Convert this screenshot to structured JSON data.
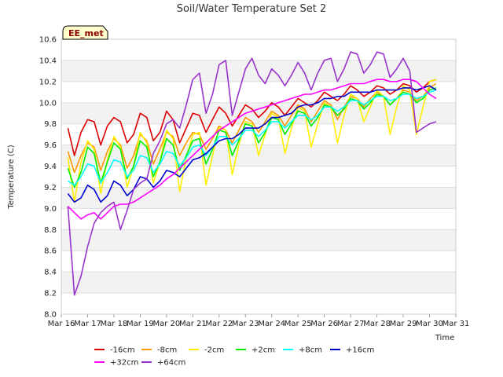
{
  "chart_data": {
    "type": "line",
    "title": "Soil/Water Temperature Set 2",
    "xlabel": "Time",
    "ylabel": "Temperature (C)",
    "badge": "EE_met",
    "x_ticks": [
      "Mar 16",
      "Mar 17",
      "Mar 18",
      "Mar 19",
      "Mar 20",
      "Mar 21",
      "Mar 22",
      "Mar 23",
      "Mar 24",
      "Mar 25",
      "Mar 26",
      "Mar 27",
      "Mar 28",
      "Mar 29",
      "Mar 30",
      "Mar 31"
    ],
    "xlim": [
      0,
      15
    ],
    "ylim": [
      8.0,
      10.6
    ],
    "y_ticks": [
      "8.0",
      "8.2",
      "8.4",
      "8.6",
      "8.8",
      "9.0",
      "9.2",
      "9.4",
      "9.6",
      "9.8",
      "10.0",
      "10.2",
      "10.4",
      "10.6"
    ],
    "grid": "horizontal bands",
    "legend_position": "bottom",
    "x_days": [
      0.25,
      0.5,
      0.75,
      1.0,
      1.25,
      1.5,
      1.75,
      2.0,
      2.25,
      2.5,
      2.75,
      3.0,
      3.25,
      3.5,
      3.75,
      4.0,
      4.25,
      4.5,
      4.75,
      5.0,
      5.25,
      5.5,
      5.75,
      6.0,
      6.25,
      6.5,
      6.75,
      7.0,
      7.25,
      7.5,
      7.75,
      8.0,
      8.25,
      8.5,
      8.75,
      9.0,
      9.25,
      9.5,
      9.75,
      10.0,
      10.25,
      10.5,
      10.75,
      11.0,
      11.25,
      11.5,
      11.75,
      12.0,
      12.25,
      12.5,
      12.75,
      13.0,
      13.25,
      13.5,
      13.75,
      14.0,
      14.25
    ],
    "series": [
      {
        "name": "-16cm",
        "color": "#dd0000",
        "values": [
          9.76,
          9.5,
          9.72,
          9.84,
          9.82,
          9.6,
          9.78,
          9.86,
          9.82,
          9.62,
          9.7,
          9.9,
          9.86,
          9.64,
          9.72,
          9.92,
          9.84,
          9.62,
          9.76,
          9.9,
          9.88,
          9.72,
          9.84,
          9.96,
          9.9,
          9.78,
          9.88,
          9.98,
          9.94,
          9.86,
          9.92,
          10.0,
          9.96,
          9.88,
          9.96,
          10.04,
          10.0,
          9.96,
          10.02,
          10.1,
          10.06,
          10.02,
          10.08,
          10.16,
          10.12,
          10.06,
          10.1,
          10.16,
          10.14,
          10.08,
          10.12,
          10.18,
          10.16,
          10.1,
          10.14,
          10.2,
          10.22
        ]
      },
      {
        "name": "-8cm",
        "color": "#ff9900",
        "values": [
          9.54,
          9.34,
          9.5,
          9.62,
          9.58,
          9.36,
          9.54,
          9.66,
          9.6,
          9.38,
          9.5,
          9.7,
          9.64,
          9.42,
          9.56,
          9.72,
          9.68,
          9.5,
          9.62,
          9.72,
          9.7,
          9.56,
          9.66,
          9.78,
          9.74,
          9.62,
          9.74,
          9.86,
          9.82,
          9.72,
          9.82,
          9.92,
          9.88,
          9.78,
          9.88,
          9.98,
          9.94,
          9.82,
          9.92,
          10.02,
          9.98,
          9.84,
          9.96,
          10.06,
          10.04,
          9.96,
          10.04,
          10.1,
          10.06,
          9.98,
          10.04,
          10.12,
          10.1,
          10.02,
          10.06,
          10.14,
          10.18
        ]
      },
      {
        "name": "-2cm",
        "color": "#ffee00",
        "values": [
          9.48,
          9.06,
          9.44,
          9.64,
          9.56,
          9.14,
          9.46,
          9.68,
          9.58,
          9.2,
          9.4,
          9.72,
          9.62,
          9.24,
          9.44,
          9.74,
          9.66,
          9.16,
          9.48,
          9.7,
          9.72,
          9.22,
          9.5,
          9.76,
          9.74,
          9.32,
          9.6,
          9.82,
          9.8,
          9.5,
          9.7,
          9.9,
          9.86,
          9.52,
          9.76,
          9.96,
          9.92,
          9.58,
          9.8,
          10.0,
          9.96,
          9.62,
          9.88,
          10.08,
          10.04,
          9.82,
          9.96,
          10.12,
          10.06,
          9.7,
          9.96,
          10.16,
          10.12,
          9.7,
          9.96,
          10.2,
          10.22
        ]
      },
      {
        "name": "+2cm",
        "color": "#00ee00",
        "values": [
          9.38,
          9.2,
          9.34,
          9.58,
          9.52,
          9.24,
          9.44,
          9.62,
          9.56,
          9.28,
          9.4,
          9.64,
          9.58,
          9.3,
          9.44,
          9.66,
          9.6,
          9.36,
          9.5,
          9.64,
          9.66,
          9.42,
          9.56,
          9.74,
          9.72,
          9.5,
          9.64,
          9.8,
          9.78,
          9.62,
          9.72,
          9.86,
          9.84,
          9.7,
          9.8,
          9.92,
          9.9,
          9.78,
          9.86,
          9.98,
          9.96,
          9.88,
          9.94,
          10.04,
          10.02,
          9.94,
          10.0,
          10.08,
          10.06,
          9.98,
          10.04,
          10.1,
          10.08,
          10.0,
          10.04,
          10.12,
          10.14
        ]
      },
      {
        "name": "+8cm",
        "color": "#00ffff",
        "values": [
          9.26,
          9.22,
          9.3,
          9.42,
          9.4,
          9.24,
          9.34,
          9.46,
          9.44,
          9.3,
          9.36,
          9.5,
          9.48,
          9.34,
          9.42,
          9.54,
          9.52,
          9.4,
          9.48,
          9.58,
          9.6,
          9.5,
          9.58,
          9.68,
          9.68,
          9.6,
          9.66,
          9.74,
          9.74,
          9.68,
          9.74,
          9.82,
          9.82,
          9.76,
          9.82,
          9.88,
          9.88,
          9.84,
          9.88,
          9.96,
          9.96,
          9.92,
          9.96,
          10.02,
          10.02,
          9.98,
          10.02,
          10.06,
          10.06,
          10.02,
          10.04,
          10.08,
          10.08,
          10.04,
          10.06,
          10.1,
          10.12
        ]
      },
      {
        "name": "+16cm",
        "color": "#0000cc",
        "values": [
          9.14,
          9.06,
          9.1,
          9.22,
          9.18,
          9.06,
          9.12,
          9.26,
          9.22,
          9.12,
          9.18,
          9.3,
          9.28,
          9.2,
          9.26,
          9.36,
          9.34,
          9.3,
          9.38,
          9.46,
          9.48,
          9.52,
          9.58,
          9.64,
          9.66,
          9.66,
          9.7,
          9.76,
          9.76,
          9.76,
          9.8,
          9.86,
          9.86,
          9.88,
          9.9,
          9.96,
          9.98,
          9.98,
          10.0,
          10.04,
          10.04,
          10.06,
          10.06,
          10.1,
          10.1,
          10.1,
          10.1,
          10.12,
          10.12,
          10.12,
          10.12,
          10.14,
          10.14,
          10.12,
          10.14,
          10.16,
          10.12
        ]
      },
      {
        "name": "+32cm",
        "color": "#ff00ff",
        "values": [
          9.02,
          8.96,
          8.9,
          8.94,
          8.96,
          8.9,
          8.96,
          9.02,
          9.04,
          9.04,
          9.06,
          9.1,
          9.14,
          9.18,
          9.22,
          9.28,
          9.32,
          9.38,
          9.44,
          9.5,
          9.56,
          9.62,
          9.68,
          9.74,
          9.78,
          9.82,
          9.86,
          9.9,
          9.92,
          9.94,
          9.96,
          9.98,
          10.0,
          10.02,
          10.04,
          10.06,
          10.08,
          10.08,
          10.1,
          10.12,
          10.12,
          10.14,
          10.16,
          10.18,
          10.18,
          10.18,
          10.2,
          10.22,
          10.22,
          10.2,
          10.2,
          10.22,
          10.22,
          10.2,
          10.14,
          10.08,
          10.04
        ]
      },
      {
        "name": "+64cm",
        "color": "#9933cc",
        "values": [
          9.02,
          8.18,
          8.36,
          8.64,
          8.86,
          8.96,
          9.02,
          9.06,
          8.8,
          8.98,
          9.18,
          9.24,
          9.28,
          9.52,
          9.64,
          9.8,
          9.84,
          9.76,
          9.98,
          10.22,
          10.28,
          9.9,
          10.08,
          10.36,
          10.4,
          9.88,
          10.1,
          10.32,
          10.42,
          10.26,
          10.18,
          10.32,
          10.26,
          10.16,
          10.26,
          10.38,
          10.28,
          10.12,
          10.28,
          10.4,
          10.42,
          10.2,
          10.32,
          10.48,
          10.46,
          10.28,
          10.36,
          10.48,
          10.46,
          10.24,
          10.32,
          10.42,
          10.3,
          9.72,
          9.76,
          9.8,
          9.82
        ]
      }
    ]
  }
}
